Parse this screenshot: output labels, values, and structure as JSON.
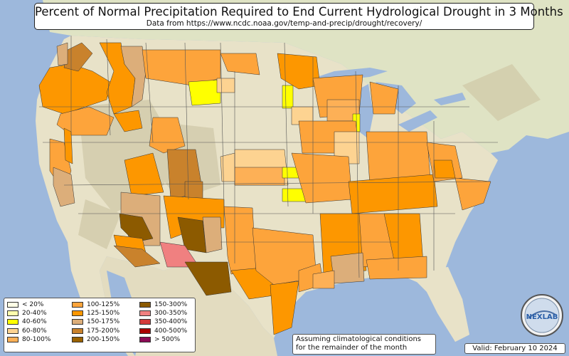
{
  "title": "Percent of Normal Precipitation Required to End Current Hydrological Drought in 3 Months",
  "subtitle": "Data from https://www.ncdc.noaa.gov/temp-and-precip/drought/recovery/",
  "legend": [
    {
      "label": "< 20%",
      "color": "#ffffe6"
    },
    {
      "label": "20-40%",
      "color": "#fdfdad"
    },
    {
      "label": "40-60%",
      "color": "#ffff00"
    },
    {
      "label": "60-80%",
      "color": "#fdd391"
    },
    {
      "label": "80-100%",
      "color": "#fdb056"
    },
    {
      "label": "100-125%",
      "color": "#fda43b"
    },
    {
      "label": "125-150%",
      "color": "#fd9700"
    },
    {
      "label": "150-175%",
      "color": "#dcae7a"
    },
    {
      "label": "175-200%",
      "color": "#c9822c"
    },
    {
      "label": "200-150%",
      "color": "#9b6200"
    },
    {
      "label": "150-300%",
      "color": "#8c5a00"
    },
    {
      "label": "300-350%",
      "color": "#f08080"
    },
    {
      "label": "350-400%",
      "color": "#d43c3c"
    },
    {
      "label": "400-500%",
      "color": "#aa0000"
    },
    {
      "label": "> 500%",
      "color": "#8b0a55"
    }
  ],
  "note": {
    "line1": "Assuming climatological conditions",
    "line2": "for the remainder of the month"
  },
  "valid": "Valid: February 10 2024",
  "logo_text": "NEXLAB",
  "colors": {
    "ocean": "#9db8dc",
    "land": "#e8e2c8",
    "terrain": "#cfc7a6",
    "lake": "#9db8dc"
  }
}
